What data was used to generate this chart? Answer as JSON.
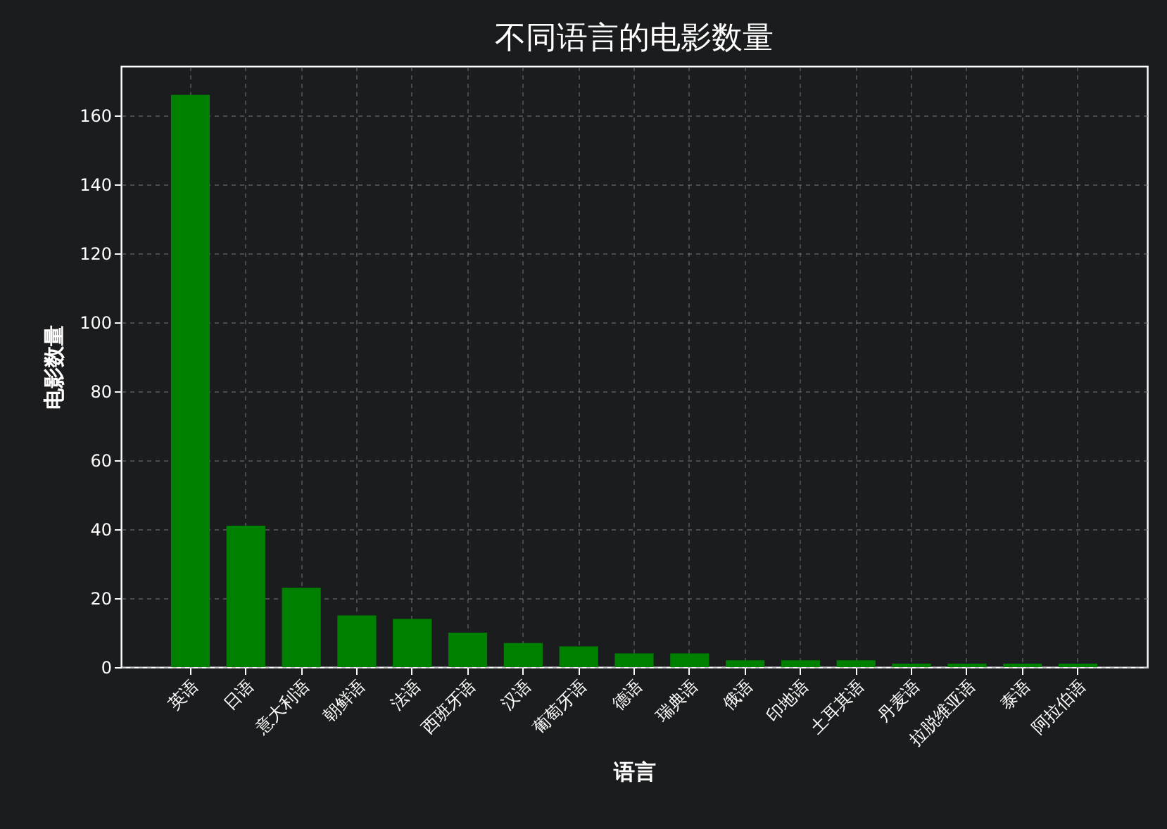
{
  "chart_data": {
    "type": "bar",
    "title": "不同语言的电影数量",
    "xlabel": "语言",
    "ylabel": "电影数量",
    "categories": [
      "英语",
      "日语",
      "意大利语",
      "朝鲜语",
      "法语",
      "西班牙语",
      "汉语",
      "葡萄牙语",
      "德语",
      "瑞典语",
      "俄语",
      "印地语",
      "土耳其语",
      "丹麦语",
      "拉脱维亚语",
      "泰语",
      "阿拉伯语"
    ],
    "values": [
      166,
      41,
      23,
      15,
      14,
      10,
      7,
      6,
      4,
      4,
      2,
      2,
      2,
      1,
      1,
      1,
      1
    ],
    "color": "#008000",
    "ylim": [
      0,
      174.3
    ],
    "yticks": [
      0,
      20,
      40,
      60,
      80,
      100,
      120,
      140,
      160
    ],
    "grid": true
  }
}
